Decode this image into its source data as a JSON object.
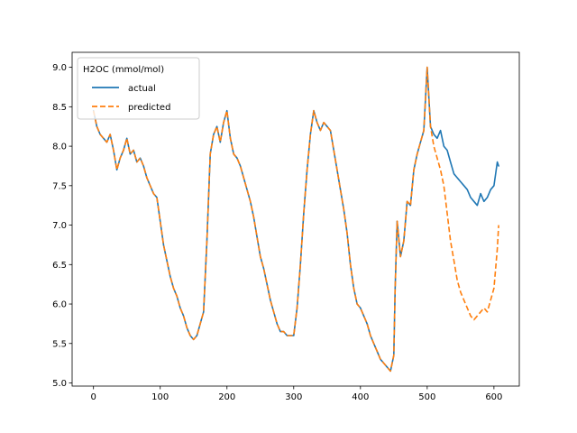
{
  "chart_data": {
    "type": "line",
    "title": "",
    "xlabel": "",
    "ylabel": "",
    "xlim": [
      -32,
      638
    ],
    "ylim": [
      4.96,
      9.19
    ],
    "x_ticks": [
      0,
      100,
      200,
      300,
      400,
      500,
      600
    ],
    "y_ticks": [
      5.0,
      5.5,
      6.0,
      6.5,
      7.0,
      7.5,
      8.0,
      8.5,
      9.0
    ],
    "y_tick_labels": [
      "5.0",
      "5.5",
      "6.0",
      "6.5",
      "7.0",
      "7.5",
      "8.0",
      "8.5",
      "9.0"
    ],
    "grid": false,
    "legend": {
      "title": "H2OC (mmol/mol)",
      "placement": "top-left"
    },
    "series": [
      {
        "name": "actual",
        "color": "#1f77b4",
        "style": "solid",
        "x": [
          0,
          5,
          10,
          15,
          20,
          25,
          30,
          35,
          40,
          45,
          50,
          55,
          60,
          65,
          70,
          75,
          80,
          85,
          90,
          95,
          100,
          105,
          110,
          115,
          120,
          125,
          130,
          135,
          140,
          145,
          150,
          155,
          160,
          165,
          170,
          175,
          180,
          185,
          190,
          195,
          200,
          205,
          210,
          215,
          220,
          225,
          230,
          235,
          240,
          245,
          250,
          255,
          260,
          265,
          270,
          275,
          280,
          285,
          290,
          295,
          300,
          305,
          310,
          315,
          320,
          325,
          330,
          335,
          340,
          345,
          350,
          355,
          360,
          365,
          370,
          375,
          380,
          385,
          390,
          395,
          400,
          405,
          410,
          415,
          420,
          425,
          430,
          435,
          440,
          445,
          450,
          452,
          455,
          460,
          465,
          470,
          475,
          480,
          485,
          490,
          495,
          500,
          505,
          510,
          515,
          520,
          525,
          530,
          535,
          540,
          545,
          550,
          555,
          560,
          565,
          570,
          575,
          580,
          585,
          590,
          595,
          600,
          605,
          607
        ],
        "values": [
          8.45,
          8.25,
          8.15,
          8.1,
          8.05,
          8.15,
          7.95,
          7.7,
          7.85,
          7.95,
          8.1,
          7.9,
          7.95,
          7.8,
          7.85,
          7.75,
          7.6,
          7.5,
          7.4,
          7.35,
          7.05,
          6.75,
          6.55,
          6.35,
          6.2,
          6.1,
          5.95,
          5.85,
          5.7,
          5.6,
          5.55,
          5.6,
          5.75,
          5.9,
          6.8,
          7.9,
          8.15,
          8.25,
          8.05,
          8.3,
          8.45,
          8.1,
          7.9,
          7.85,
          7.75,
          7.6,
          7.45,
          7.3,
          7.1,
          6.85,
          6.6,
          6.45,
          6.25,
          6.05,
          5.9,
          5.75,
          5.65,
          5.65,
          5.6,
          5.6,
          5.6,
          5.95,
          6.5,
          7.15,
          7.7,
          8.15,
          8.45,
          8.3,
          8.2,
          8.3,
          8.25,
          8.2,
          7.95,
          7.7,
          7.45,
          7.2,
          6.9,
          6.5,
          6.2,
          6.0,
          5.95,
          5.85,
          5.75,
          5.6,
          5.5,
          5.4,
          5.3,
          5.25,
          5.2,
          5.15,
          5.35,
          6.2,
          7.05,
          6.6,
          6.8,
          7.3,
          7.25,
          7.7,
          7.9,
          8.05,
          8.2,
          9.0,
          8.25,
          8.15,
          8.1,
          8.2,
          8.0,
          7.95,
          7.8,
          7.65,
          7.6,
          7.55,
          7.5,
          7.45,
          7.35,
          7.3,
          7.25,
          7.4,
          7.3,
          7.35,
          7.45,
          7.5,
          7.8,
          7.75
        ]
      },
      {
        "name": "predicted",
        "color": "#ff7f0e",
        "style": "dashed",
        "x": [
          0,
          5,
          10,
          15,
          20,
          25,
          30,
          35,
          40,
          45,
          50,
          55,
          60,
          65,
          70,
          75,
          80,
          85,
          90,
          95,
          100,
          105,
          110,
          115,
          120,
          125,
          130,
          135,
          140,
          145,
          150,
          155,
          160,
          165,
          170,
          175,
          180,
          185,
          190,
          195,
          200,
          205,
          210,
          215,
          220,
          225,
          230,
          235,
          240,
          245,
          250,
          255,
          260,
          265,
          270,
          275,
          280,
          285,
          290,
          295,
          300,
          305,
          310,
          315,
          320,
          325,
          330,
          335,
          340,
          345,
          350,
          355,
          360,
          365,
          370,
          375,
          380,
          385,
          390,
          395,
          400,
          405,
          410,
          415,
          420,
          425,
          430,
          435,
          440,
          445,
          450,
          452,
          455,
          460,
          465,
          470,
          475,
          480,
          485,
          490,
          495,
          500,
          505,
          510,
          515,
          520,
          525,
          530,
          535,
          540,
          545,
          550,
          555,
          560,
          565,
          570,
          575,
          580,
          585,
          590,
          595,
          600,
          605,
          607
        ],
        "values": [
          8.45,
          8.25,
          8.15,
          8.1,
          8.05,
          8.15,
          7.95,
          7.7,
          7.85,
          7.95,
          8.1,
          7.9,
          7.95,
          7.8,
          7.85,
          7.75,
          7.6,
          7.5,
          7.4,
          7.35,
          7.05,
          6.75,
          6.55,
          6.35,
          6.2,
          6.1,
          5.95,
          5.85,
          5.7,
          5.6,
          5.55,
          5.6,
          5.75,
          5.9,
          6.8,
          7.9,
          8.15,
          8.25,
          8.05,
          8.3,
          8.45,
          8.1,
          7.9,
          7.85,
          7.75,
          7.6,
          7.45,
          7.3,
          7.1,
          6.85,
          6.6,
          6.45,
          6.25,
          6.05,
          5.9,
          5.75,
          5.65,
          5.65,
          5.6,
          5.6,
          5.6,
          5.95,
          6.5,
          7.15,
          7.7,
          8.15,
          8.45,
          8.3,
          8.2,
          8.3,
          8.25,
          8.2,
          7.95,
          7.7,
          7.45,
          7.2,
          6.9,
          6.5,
          6.2,
          6.0,
          5.95,
          5.85,
          5.75,
          5.6,
          5.5,
          5.4,
          5.3,
          5.25,
          5.2,
          5.15,
          5.35,
          6.2,
          7.05,
          6.6,
          6.8,
          7.3,
          7.25,
          7.7,
          7.9,
          8.05,
          8.2,
          9.0,
          8.25,
          8.0,
          7.85,
          7.7,
          7.5,
          7.15,
          6.8,
          6.55,
          6.3,
          6.15,
          6.05,
          5.95,
          5.85,
          5.8,
          5.85,
          5.9,
          5.95,
          5.9,
          6.05,
          6.2,
          6.7,
          7.0
        ]
      }
    ]
  }
}
